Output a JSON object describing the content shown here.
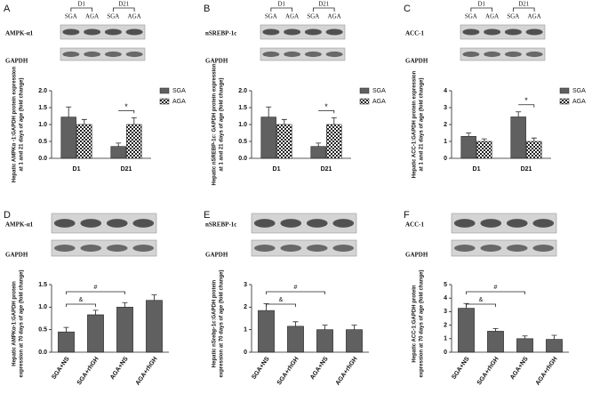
{
  "chart_data": [
    {
      "type": "bar",
      "panel": "A",
      "blot": {
        "groups": [
          "D1",
          "D21"
        ],
        "lanes": [
          "SGA",
          "AGA",
          "SGA",
          "AGA"
        ],
        "proteins": [
          "AMPK-α1",
          "GAPDH"
        ]
      },
      "y_label_lines": [
        "Hepatic AMPKα -1:GAPDH protein expression",
        "at 1 and 21 days of age (fold change)"
      ],
      "categories": [
        "D1",
        "D21"
      ],
      "series": [
        {
          "name": "SGA",
          "color": "#6e6e6e",
          "pattern": "hatch",
          "values": [
            1.22,
            0.35
          ],
          "errors": [
            0.3,
            0.1
          ]
        },
        {
          "name": "AGA",
          "color": "#ffffff",
          "pattern": "checker",
          "values": [
            1.0,
            1.0
          ],
          "errors": [
            0.15,
            0.2
          ]
        }
      ],
      "ylim": [
        0,
        2
      ],
      "yticks": [
        {
          "value": 0,
          "label": "0.0"
        },
        0.5,
        {
          "value": 1,
          "label": "1.0"
        },
        1.5,
        {
          "value": 2,
          "label": "2.0"
        }
      ],
      "annotations": [
        "*"
      ]
    },
    {
      "type": "bar",
      "panel": "B",
      "blot": {
        "groups": [
          "D1",
          "D21"
        ],
        "lanes": [
          "SGA",
          "AGA",
          "SGA",
          "AGA"
        ],
        "proteins": [
          "nSREBP-1c",
          "GAPDH"
        ]
      },
      "y_label_lines": [
        "Hepatic nSREBP-1c: GAPDH protein expression",
        "at 1 and 21 days of age (fold change)"
      ],
      "categories": [
        "D1",
        "D21"
      ],
      "series": [
        {
          "name": "SGA",
          "color": "#6e6e6e",
          "pattern": "hatch",
          "values": [
            1.22,
            0.35
          ],
          "errors": [
            0.3,
            0.1
          ]
        },
        {
          "name": "AGA",
          "color": "#ffffff",
          "pattern": "checker",
          "values": [
            1.0,
            1.0
          ],
          "errors": [
            0.15,
            0.2
          ]
        }
      ],
      "ylim": [
        0,
        2
      ],
      "yticks": [
        {
          "value": 0,
          "label": "0.0"
        },
        0.5,
        {
          "value": 1,
          "label": "1.0"
        },
        1.5,
        {
          "value": 2,
          "label": "2.0"
        }
      ],
      "annotations": [
        "*"
      ]
    },
    {
      "type": "bar",
      "panel": "C",
      "blot": {
        "groups": [
          "D1",
          "D21"
        ],
        "lanes": [
          "SGA",
          "AGA",
          "SGA",
          "AGA"
        ],
        "proteins": [
          "ACC-1",
          "GAPDH"
        ]
      },
      "y_label_lines": [
        "Hepatic ACC-1:GAPDH protein expression",
        "at 1 and 21 days of age (fold change)"
      ],
      "categories": [
        "D1",
        "D21"
      ],
      "series": [
        {
          "name": "SGA",
          "color": "#6e6e6e",
          "pattern": "hatch",
          "values": [
            1.3,
            2.45
          ],
          "errors": [
            0.2,
            0.3
          ]
        },
        {
          "name": "AGA",
          "color": "#ffffff",
          "pattern": "checker",
          "values": [
            1.0,
            1.0
          ],
          "errors": [
            0.15,
            0.2
          ]
        }
      ],
      "ylim": [
        0,
        4
      ],
      "yticks": [
        0,
        1,
        2,
        3,
        4
      ],
      "annotations": [
        "*"
      ]
    },
    {
      "type": "bar",
      "panel": "D",
      "blot": {
        "proteins": [
          "AMPK-α1",
          "GAPDH"
        ]
      },
      "y_label_lines": [
        "Hepatic AMPKα-1:GAPDH protein",
        "expression at 70 days of age (fold change)"
      ],
      "categories": [
        "SGA+NS",
        "SGA+rhGH",
        "AGA+NS",
        "AGA+rhGH"
      ],
      "values": [
        0.45,
        0.83,
        1.0,
        1.15
      ],
      "errors": [
        0.1,
        0.1,
        0.1,
        0.12
      ],
      "color": "#6e6e6e",
      "pattern": "hatch",
      "ylim": [
        0,
        1.5
      ],
      "yticks": [
        {
          "value": 0,
          "label": "0.0"
        },
        0.5,
        {
          "value": 1,
          "label": "1.0"
        },
        1.5
      ],
      "annotations": [
        "&",
        "#"
      ]
    },
    {
      "type": "bar",
      "panel": "E",
      "blot": {
        "proteins": [
          "nSREBP-1c",
          "GAPDH"
        ]
      },
      "y_label_lines": [
        "Hepatic nSrebp-1c:GAPDH protein",
        "expression at 70 days of age (fold change)"
      ],
      "categories": [
        "SGA+NS",
        "SGA+rhGH",
        "AGA+NS",
        "AGA+rhGH"
      ],
      "values": [
        1.85,
        1.15,
        1.0,
        1.0
      ],
      "errors": [
        0.3,
        0.2,
        0.2,
        0.2
      ],
      "color": "#6e6e6e",
      "pattern": "hatch",
      "ylim": [
        0,
        3
      ],
      "yticks": [
        0,
        1,
        2,
        3
      ],
      "annotations": [
        "&",
        "#"
      ]
    },
    {
      "type": "bar",
      "panel": "F",
      "blot": {
        "proteins": [
          "ACC-1",
          "GAPDH"
        ]
      },
      "y_label_lines": [
        "Hepatic ACC-1:GAPDH protein",
        "expression at 70 days of age (fold change)"
      ],
      "categories": [
        "SGA+NS",
        "SGA+rhGH",
        "AGA+NS",
        "AGA+rhGH"
      ],
      "values": [
        3.25,
        1.55,
        1.0,
        0.95
      ],
      "errors": [
        0.35,
        0.2,
        0.2,
        0.3
      ],
      "color": "#6e6e6e",
      "pattern": "hatch",
      "ylim": [
        0,
        5
      ],
      "yticks": [
        0,
        1,
        2,
        3,
        4,
        5
      ],
      "annotations": [
        "&",
        "#"
      ]
    }
  ]
}
